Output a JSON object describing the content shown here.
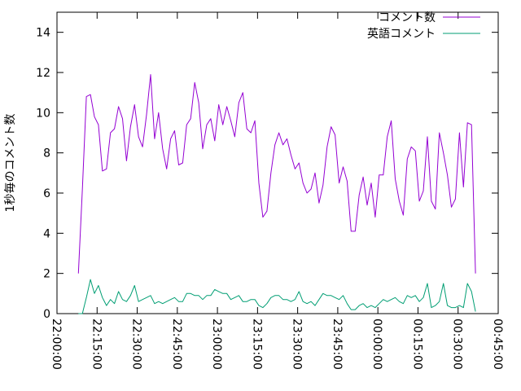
{
  "chart_data": {
    "type": "line",
    "title": "",
    "xlabel": "",
    "ylabel": "1秒毎のコメント数",
    "ylim": [
      0,
      15
    ],
    "yticks": [
      0,
      2,
      4,
      6,
      8,
      10,
      12,
      14
    ],
    "xlim_seconds": [
      0,
      9900
    ],
    "xtick_labels": [
      "22:00:00",
      "22:15:00",
      "22:30:00",
      "22:45:00",
      "23:00:00",
      "23:15:00",
      "23:30:00",
      "23:45:00",
      "00:00:00",
      "00:15:00",
      "00:30:00",
      "00:45:00"
    ],
    "grid": false,
    "legend": "top-right",
    "series": [
      {
        "name": "コメント数",
        "color": "#9400d3",
        "values": [
          2.0,
          6.2,
          10.8,
          10.9,
          9.8,
          9.4,
          7.1,
          7.2,
          9.0,
          9.2,
          10.3,
          9.7,
          7.6,
          9.3,
          10.4,
          8.8,
          8.3,
          9.9,
          11.9,
          8.7,
          10.0,
          8.2,
          7.2,
          8.7,
          9.1,
          7.4,
          7.5,
          9.4,
          9.7,
          11.5,
          10.5,
          8.2,
          9.4,
          9.7,
          8.6,
          10.4,
          9.4,
          10.3,
          9.6,
          8.8,
          10.5,
          11.0,
          9.2,
          9.0,
          9.6,
          6.5,
          4.8,
          5.1,
          7.0,
          8.4,
          9.0,
          8.4,
          8.7,
          7.9,
          7.2,
          7.5,
          6.5,
          6.0,
          6.2,
          7.0,
          5.5,
          6.4,
          8.3,
          9.3,
          8.9,
          6.5,
          7.3,
          6.6,
          4.1,
          4.1,
          5.9,
          6.8,
          5.4,
          6.5,
          4.8,
          6.9,
          6.9,
          8.8,
          9.6,
          6.7,
          5.6,
          4.9,
          7.7,
          8.3,
          8.1,
          5.6,
          6.1,
          8.8,
          5.6,
          5.2,
          9.0,
          8.0,
          6.9,
          5.3,
          5.7,
          9.0,
          6.3,
          9.5,
          9.4,
          2.0
        ],
        "stats": "100 samples, one per ~1.5 minutes from 22:08 to 00:37"
      },
      {
        "name": "英語コメント",
        "color": "#009e73",
        "values": [
          0.0,
          0.0,
          0.8,
          1.7,
          1.0,
          1.4,
          0.8,
          0.4,
          0.7,
          0.5,
          1.1,
          0.7,
          0.6,
          0.9,
          1.4,
          0.6,
          0.7,
          0.8,
          0.9,
          0.5,
          0.6,
          0.5,
          0.6,
          0.7,
          0.8,
          0.6,
          0.6,
          1.0,
          1.0,
          0.9,
          0.9,
          0.7,
          0.9,
          0.9,
          1.2,
          1.1,
          1.0,
          1.0,
          0.7,
          0.8,
          0.9,
          0.6,
          0.6,
          0.7,
          0.7,
          0.4,
          0.3,
          0.5,
          0.8,
          0.9,
          0.9,
          0.7,
          0.7,
          0.6,
          0.7,
          1.1,
          0.6,
          0.5,
          0.6,
          0.4,
          0.7,
          1.0,
          0.9,
          0.9,
          0.8,
          0.7,
          0.9,
          0.5,
          0.2,
          0.2,
          0.4,
          0.5,
          0.3,
          0.4,
          0.3,
          0.5,
          0.7,
          0.6,
          0.7,
          0.8,
          0.6,
          0.5,
          0.9,
          0.8,
          0.9,
          0.6,
          0.8,
          1.5,
          0.3,
          0.4,
          0.6,
          1.5,
          0.4,
          0.3,
          0.3,
          0.4,
          0.3,
          1.5,
          1.1,
          0.1
        ],
        "stats": "100 samples aligned with the first series"
      }
    ],
    "x_start_seconds": 480,
    "x_step_seconds": 90
  }
}
